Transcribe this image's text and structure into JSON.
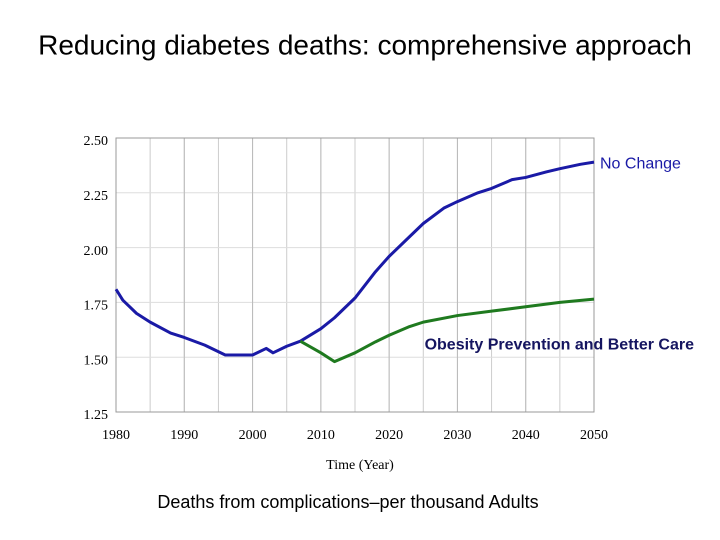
{
  "chart_data": {
    "type": "line",
    "title": "Reducing diabetes deaths: comprehensive approach",
    "x_label": "Time (Year)",
    "caption": "Deaths from complications–per thousand Adults",
    "x": [
      1980,
      1981,
      1983,
      1985,
      1988,
      1990,
      1993,
      1996,
      1998,
      2000,
      2002,
      2003,
      2005,
      2007,
      2010,
      2012,
      2015,
      2018,
      2020,
      2023,
      2025,
      2028,
      2030,
      2033,
      2035,
      2038,
      2040,
      2043,
      2045,
      2048,
      2050
    ],
    "series": [
      {
        "name": "No Change",
        "color": "#1a1aa6",
        "values": [
          1.81,
          1.76,
          1.7,
          1.66,
          1.61,
          1.59,
          1.555,
          1.51,
          1.51,
          1.51,
          1.54,
          1.52,
          1.55,
          1.573,
          1.63,
          1.68,
          1.77,
          1.89,
          1.96,
          2.05,
          2.11,
          2.18,
          2.21,
          2.25,
          2.27,
          2.31,
          2.32,
          2.345,
          2.36,
          2.38,
          2.39
        ]
      },
      {
        "name": "Obesity Prevention and Better Care",
        "color": "#1f7a1f",
        "values": [
          null,
          null,
          null,
          null,
          null,
          null,
          null,
          null,
          null,
          null,
          null,
          null,
          null,
          1.573,
          1.52,
          1.48,
          1.52,
          1.57,
          1.6,
          1.64,
          1.66,
          null,
          1.69,
          null,
          1.71,
          null,
          1.73,
          null,
          1.75,
          null,
          1.765
        ]
      }
    ],
    "xlim": [
      1980,
      2050
    ],
    "xticks": [
      1980,
      1990,
      2000,
      2010,
      2020,
      2030,
      2040,
      2050
    ],
    "ylim": [
      1.25,
      2.5
    ],
    "yticks": [
      {
        "value": 1.25,
        "label": "1.25"
      },
      {
        "value": 1.5,
        "label": "1.50"
      },
      {
        "value": 1.75,
        "label": "1.75"
      },
      {
        "value": 2.0,
        "label": "2.00"
      },
      {
        "value": 2.25,
        "label": "2.25"
      },
      {
        "value": 2.5,
        "label": "2.50"
      }
    ],
    "grid": true
  }
}
